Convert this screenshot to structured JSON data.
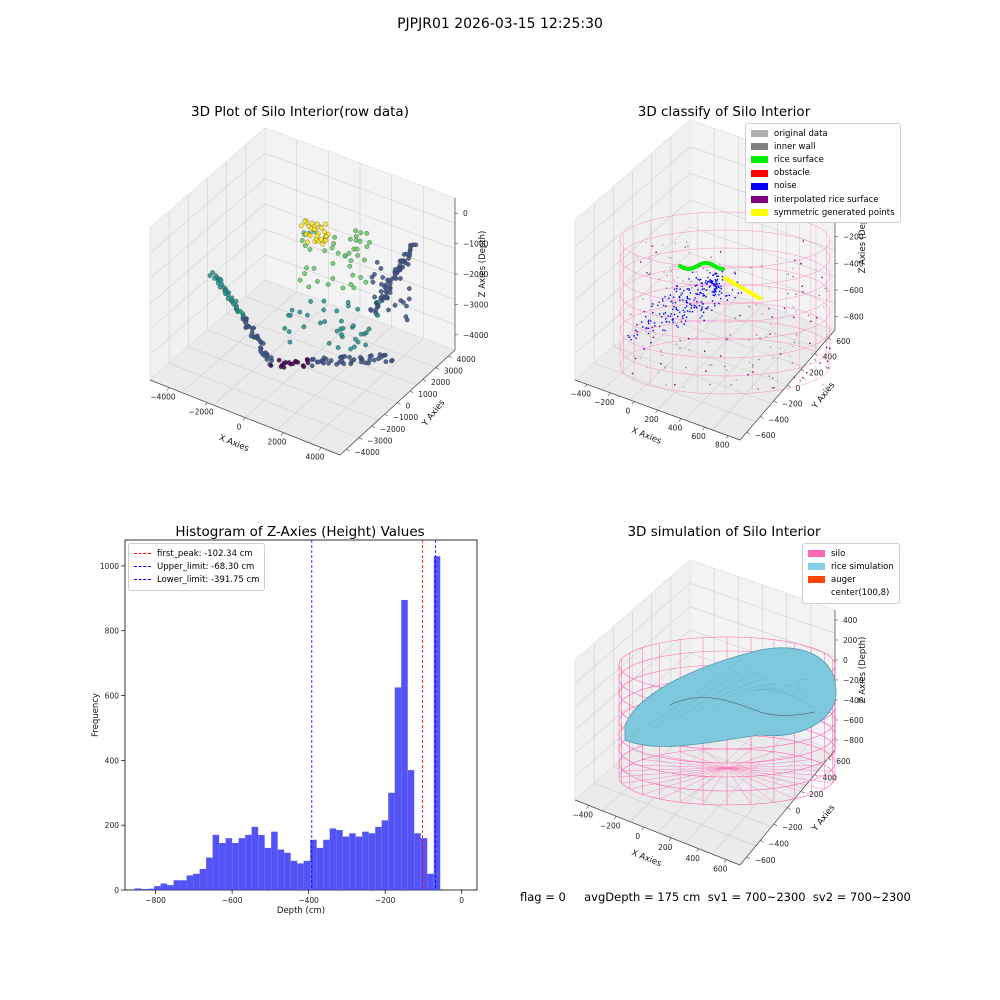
{
  "figure": {
    "title": "PJPJR01 2026-03-15 12:25:30",
    "status_text": "flag = 0     avgDepth = 175 cm  sv1 = 700~2300  sv2 = 700~2300"
  },
  "colors": {
    "pane": "#f0f0f0",
    "grid": "#d0d0d0",
    "hist_bar": "#4b4bf5",
    "peak_line": "#ff0000",
    "limit_line": "#0000ff",
    "silo_wire": "#ff69b4",
    "rice_surface": "#7ec8de"
  },
  "icons": [
    "legend-swatch-icon",
    "legend-dashed-line-icon"
  ],
  "chart_data": [
    {
      "type": "scatter3d",
      "title": "3D Plot of Silo Interior(row data)",
      "xlabel": "X Axies",
      "ylabel": "Y Axies",
      "zlabel": "Z Axies (Depth)",
      "xticks": [
        "−4000",
        "−2000",
        "0",
        "2000",
        "4000"
      ],
      "yticks": [
        "−4000",
        "−3000",
        "−2000",
        "−1000",
        "0",
        "1000",
        "2000",
        "3000",
        "4000"
      ],
      "zticks": [
        "−4000",
        "−3000",
        "−2000",
        "−1000",
        "0"
      ],
      "xlim": [
        -4500,
        4500
      ],
      "ylim": [
        -4500,
        4500
      ],
      "zlim": [
        -4500,
        200
      ],
      "colormap": "viridis"
    },
    {
      "type": "scatter3d",
      "title": "3D classify of Silo Interior",
      "xlabel": "X Axies",
      "ylabel": "Y Axies",
      "zlabel": "Z Axies (Depth)",
      "xticks": [
        "−400",
        "−200",
        "0",
        "200",
        "400",
        "600",
        "800"
      ],
      "yticks": [
        "−600",
        "−400",
        "−200",
        "0",
        "200",
        "400",
        "600"
      ],
      "zticks": [
        "−800",
        "−600",
        "−400",
        "−200",
        "0",
        "200"
      ],
      "legend_position": "top-right",
      "legend": [
        {
          "label": "original data",
          "color": "#b0b0b0"
        },
        {
          "label": "inner wall",
          "color": "#808080"
        },
        {
          "label": "rice surface",
          "color": "#00ee00"
        },
        {
          "label": "obstacle",
          "color": "#ff0000"
        },
        {
          "label": "noise",
          "color": "#0000ff"
        },
        {
          "label": "interpolated rice surface",
          "color": "#800080"
        },
        {
          "label": "symmetric generated points",
          "color": "#ffff00"
        }
      ]
    },
    {
      "type": "bar",
      "title": "Histogram of Z-Axies (Height) Values",
      "xlabel": "Depth (cm)",
      "ylabel": "Frequency",
      "xlim": [
        -880,
        40
      ],
      "ylim": [
        0,
        1080
      ],
      "xticks": [
        -800,
        -600,
        -400,
        -200,
        0
      ],
      "xtick_labels": [
        "−800",
        "−600",
        "−400",
        "−200",
        "0"
      ],
      "yticks": [
        0,
        200,
        400,
        600,
        800,
        1000
      ],
      "yticks_labels": [
        "0",
        "200",
        "400",
        "600",
        "800",
        "1000"
      ],
      "bin_start": -855,
      "bin_width": 17,
      "values": [
        5,
        3,
        4,
        12,
        20,
        15,
        30,
        30,
        45,
        50,
        65,
        100,
        170,
        145,
        160,
        145,
        160,
        170,
        195,
        170,
        130,
        180,
        125,
        115,
        90,
        82,
        90,
        155,
        130,
        155,
        190,
        185,
        165,
        175,
        165,
        180,
        175,
        195,
        215,
        300,
        625,
        895,
        370,
        175,
        160,
        50,
        1030
      ],
      "lines": [
        {
          "label": "first_peak: -102.34 cm",
          "x": -102.34,
          "color": "#ff0000"
        },
        {
          "label": "Upper_limit: -68.30 cm",
          "x": -68.3,
          "color": "#0000ff"
        },
        {
          "label": "Lower_limit: -391.75 cm",
          "x": -391.75,
          "color": "#0000ff"
        }
      ],
      "legend_position": "top-left"
    },
    {
      "type": "surface3d",
      "title": "3D simulation of Silo Interior",
      "xlabel": "X Axies",
      "ylabel": "Y Axies",
      "zlabel": "Z Axies (Depth)",
      "xticks": [
        "−400",
        "−200",
        "0",
        "200",
        "400",
        "600"
      ],
      "yticks": [
        "−600",
        "−400",
        "−200",
        "0",
        "200",
        "400",
        "600"
      ],
      "zticks": [
        "−800",
        "−600",
        "−400",
        "−200",
        "0",
        "200",
        "400"
      ],
      "legend_position": "top-right",
      "legend": [
        {
          "label": "silo",
          "color": "#ff69b4"
        },
        {
          "label": "rice simulation",
          "color": "#87ceeb"
        },
        {
          "label": "auger",
          "color": "#ff4500"
        },
        {
          "label": "center(100,8)",
          "color": "#ffffff"
        }
      ]
    }
  ]
}
